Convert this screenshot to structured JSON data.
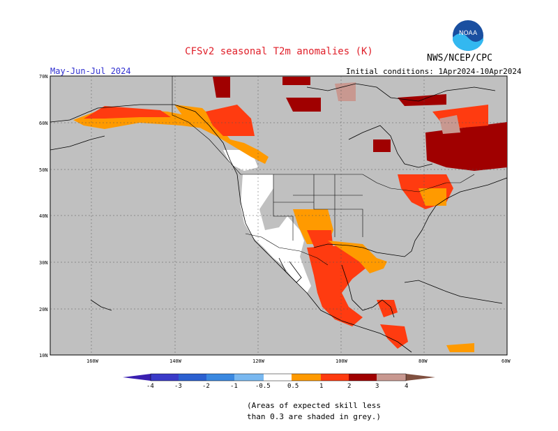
{
  "header": {
    "title": "CFSv2 seasonal T2m anomalies (K)",
    "org": "NWS/NCEP/CPC",
    "season": "May-Jun-Jul 2024",
    "init": "Initial conditions: 1Apr2024-10Apr2024",
    "logo_text": "NOAA"
  },
  "map": {
    "lat_labels": [
      "70N",
      "60N",
      "50N",
      "40N",
      "30N",
      "20N",
      "10N"
    ],
    "lon_labels": [
      "160W",
      "140W",
      "120W",
      "100W",
      "80W",
      "60W"
    ],
    "colors": {
      "land_skill_low": "#c0c0c0",
      "ocean": "#c0c0c0",
      "neutral": "#ffffff"
    }
  },
  "colorbar": {
    "labels": [
      "-4",
      "-3",
      "-2",
      "-1",
      "-0.5",
      "0.5",
      "1",
      "2",
      "3",
      "4"
    ],
    "colors": [
      "#3a1fb0",
      "#2b50c8",
      "#2b72d8",
      "#4a98e8",
      "#79b8f0",
      "#ffffff",
      "#ff9a00",
      "#ff3b10",
      "#d81010",
      "#a00000",
      "#c89890",
      "#805040"
    ]
  },
  "note": {
    "line1": "(Areas of expected skill less",
    "line2": "than 0.3 are shaded in grey.)"
  }
}
